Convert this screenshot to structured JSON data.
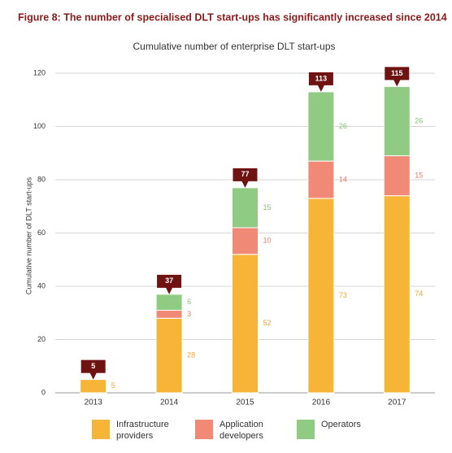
{
  "chart_data": {
    "type": "stacked-bar",
    "title": "Figure 8: The number of specialised DLT start-ups has significantly increased since 2014",
    "subtitle": "Cumulative number of enterprise DLT start-ups",
    "y_label": "Cumulative number of DLT start-ups",
    "categories": [
      "2013",
      "2014",
      "2015",
      "2016",
      "2017"
    ],
    "series": [
      {
        "name": "Infrastructure providers",
        "color": "#f7b538",
        "label_color": "#f2a73a",
        "values": [
          5,
          28,
          52,
          73,
          74
        ]
      },
      {
        "name": "Application developers",
        "color": "#f08a76",
        "label_color": "#ee7b66",
        "values": [
          null,
          3,
          10,
          14,
          15
        ]
      },
      {
        "name": "Operators",
        "color": "#8fcb82",
        "label_color": "#86c477",
        "values": [
          null,
          6,
          15,
          26,
          26
        ]
      }
    ],
    "totals": [
      5,
      37,
      77,
      113,
      115
    ],
    "total_color": "#6e1212",
    "title_color": "#8a1c1c",
    "ylim": [
      0,
      120
    ],
    "yticks": [
      0,
      20,
      40,
      60,
      80,
      100,
      120
    ],
    "grid": true
  }
}
